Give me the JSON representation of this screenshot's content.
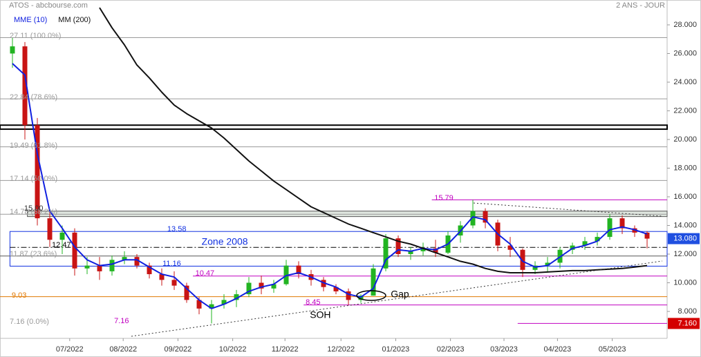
{
  "chart_data": {
    "type": "candlestick",
    "title": "ATOS - abcbourse.com",
    "subtitle": "2 ANS - JOUR",
    "up_color": "#22b422",
    "down_color": "#c81414",
    "open": [
      26,
      26.5,
      21,
      14.5,
      13,
      13.5,
      11,
      11.2,
      10.8,
      11.6,
      11.8,
      11.2,
      10.6,
      10.2,
      9.8,
      8.8,
      8.2,
      8.5,
      8.8,
      9.2,
      10,
      9.6,
      9.9,
      11.2,
      10.6,
      10.2,
      9.7,
      9.4,
      8.8,
      9.1,
      11,
      13.1,
      12,
      12.2,
      12.4,
      12.1,
      13.3,
      14,
      15,
      14.2,
      12.6,
      12.3,
      10.9,
      11.2,
      11.4,
      12.3,
      12.6,
      12.9,
      13.2,
      14.5,
      13.8,
      13.5
    ],
    "high": [
      27.1,
      26.8,
      21.5,
      15,
      14,
      13.8,
      11.8,
      11.8,
      11.9,
      12.2,
      12,
      11.4,
      11,
      10.8,
      10,
      9,
      8.8,
      9.2,
      9.5,
      10.4,
      10.5,
      10.2,
      11.6,
      11.5,
      10.9,
      10.4,
      9.9,
      9.6,
      9.2,
      11.3,
      13.4,
      13.3,
      12.5,
      12.8,
      13,
      13.6,
      14.3,
      15.79,
      15.2,
      14.4,
      13.2,
      12.4,
      11.5,
      11.8,
      12.5,
      12.8,
      13.2,
      13.5,
      14.8,
      14.7,
      14,
      13.6
    ],
    "low": [
      25,
      20,
      14,
      12.5,
      12,
      10.5,
      10.6,
      10.2,
      10.5,
      11.3,
      11,
      10.3,
      9.8,
      9.5,
      8.6,
      7.8,
      7.16,
      8.2,
      8.3,
      9,
      9.2,
      9.3,
      9.8,
      10.3,
      9.8,
      9.4,
      9.2,
      8.45,
      8.6,
      9.1,
      10.8,
      11.8,
      11.6,
      11.9,
      11.8,
      12,
      12.8,
      13.8,
      13.8,
      12.2,
      11.8,
      10.4,
      10.6,
      10.7,
      11,
      12,
      12.3,
      12.6,
      13,
      13.4,
      13.2,
      12.4
    ],
    "close": [
      26.5,
      21,
      14.5,
      13,
      13.5,
      11,
      11.2,
      10.8,
      11.6,
      11.8,
      11.2,
      10.6,
      10.2,
      9.8,
      8.8,
      8.2,
      8.5,
      8.8,
      9.2,
      10,
      9.6,
      9.9,
      11.2,
      10.6,
      10.2,
      9.7,
      9.4,
      8.8,
      9.1,
      11,
      13.1,
      12,
      12.2,
      12.4,
      12.1,
      13.3,
      14,
      15,
      14.2,
      12.6,
      12.3,
      10.9,
      11.2,
      11.4,
      12.3,
      12.6,
      12.9,
      13.2,
      14.5,
      13.8,
      13.5,
      13.08
    ],
    "series": [
      {
        "name": "MME (10)",
        "color": "#1020e0",
        "values": [
          25.3,
          24.5,
          19,
          15,
          13.8,
          12.5,
          11.6,
          11.2,
          11.3,
          11.6,
          11.6,
          11.1,
          10.6,
          10.4,
          9.6,
          8.8,
          8.2,
          8.5,
          8.9,
          9.4,
          9.7,
          9.9,
          10.5,
          10.7,
          10.4,
          10,
          9.7,
          9.2,
          9,
          9.6,
          11.6,
          12.3,
          12.2,
          12.4,
          12.3,
          12.7,
          13.6,
          14.6,
          14.4,
          13.4,
          12.7,
          11.5,
          11.1,
          11.2,
          11.8,
          12.4,
          12.6,
          12.9,
          13.7,
          13.9,
          13.7,
          13.4
        ]
      },
      {
        "name": "MM (200)",
        "color": "#111111",
        "values": [
          null,
          null,
          null,
          null,
          null,
          null,
          null,
          29.2,
          27.8,
          26.6,
          25.2,
          24.3,
          23.3,
          22.4,
          21.8,
          21.3,
          20.8,
          20.1,
          19.3,
          18.5,
          17.8,
          17.1,
          16.5,
          15.9,
          15.3,
          14.9,
          14.5,
          14.1,
          13.8,
          13.5,
          13.2,
          12.9,
          12.7,
          12.4,
          12.1,
          11.8,
          11.5,
          11.3,
          11,
          10.8,
          10.7,
          10.7,
          10.7,
          10.75,
          10.8,
          10.85,
          10.85,
          10.9,
          10.95,
          11,
          11.1,
          11.2
        ]
      }
    ],
    "xlim": [
      -1,
      52.61
    ],
    "xticks": [
      {
        "value": 4.6,
        "label": "07/2022"
      },
      {
        "value": 8.9,
        "label": "08/2022"
      },
      {
        "value": 13.3,
        "label": "09/2022"
      },
      {
        "value": 17.7,
        "label": "10/2022"
      },
      {
        "value": 21.9,
        "label": "11/2022"
      },
      {
        "value": 26.4,
        "label": "12/2022"
      },
      {
        "value": 30.8,
        "label": "01/2023"
      },
      {
        "value": 35.2,
        "label": "02/2023"
      },
      {
        "value": 39.5,
        "label": "03/2023"
      },
      {
        "value": 43.8,
        "label": "04/2023"
      },
      {
        "value": 48.2,
        "label": "05/2023"
      }
    ],
    "ylim": [
      6.12,
      29.735
    ],
    "yticks": [
      {
        "value": 8,
        "label": "8.000"
      },
      {
        "value": 10,
        "label": "10.000"
      },
      {
        "value": 12,
        "label": "12.000"
      },
      {
        "value": 14,
        "label": "14.000"
      },
      {
        "value": 16,
        "label": "16.000"
      },
      {
        "value": 18,
        "label": "18.000"
      },
      {
        "value": 20,
        "label": "20.000"
      },
      {
        "value": 22,
        "label": "22.000"
      },
      {
        "value": 24,
        "label": "24.000"
      },
      {
        "value": 26,
        "label": "26.000"
      },
      {
        "value": 28,
        "label": "28.000"
      }
    ],
    "zones": [
      {
        "low": 20.72,
        "high": 21.0,
        "from": -1,
        "stroke": "#000000",
        "fill": "none"
      },
      {
        "low": 14.62,
        "high": 15.0,
        "from": 1.2,
        "stroke": "#555555",
        "fill": "#dfe6df"
      },
      {
        "low": 11.16,
        "high": 13.58,
        "from": -0.2,
        "stroke": "#1030e0",
        "fill": "none"
      }
    ],
    "hlines": [
      {
        "value": 27.11,
        "from": -1,
        "color": "#9a9a9a"
      },
      {
        "value": 22.84,
        "from": -1,
        "color": "#9a9a9a"
      },
      {
        "value": 19.49,
        "from": -1,
        "color": "#9a9a9a"
      },
      {
        "value": 17.14,
        "from": -1,
        "color": "#9a9a9a"
      },
      {
        "value": 14.78,
        "from": -1,
        "color": "#9a9a9a"
      },
      {
        "value": 11.87,
        "from": -1,
        "color": "#555555"
      },
      {
        "value": 12.47,
        "from": -0.2,
        "color": "#000000",
        "dash": "8 3 2 3"
      },
      {
        "value": 10.47,
        "from": 14.5,
        "color": "#c000c0"
      },
      {
        "value": 9.03,
        "from": -1,
        "color": "#e07800"
      },
      {
        "value": 8.45,
        "from": 23.4,
        "color": "#c000c0"
      },
      {
        "value": 7.16,
        "from": 40.6,
        "color": "#c000c0"
      },
      {
        "value": 15.79,
        "from": 33.7,
        "color": "#c000c0"
      }
    ],
    "annotations": [
      {
        "text": "27.11 (100.0%)",
        "x": -0.22,
        "y": 27.23,
        "color": "#999999"
      },
      {
        "text": "22.84 (78.6%)",
        "x": -0.22,
        "y": 22.94,
        "color": "#999999"
      },
      {
        "text": "19.49 (61.8%)",
        "x": -0.22,
        "y": 19.57,
        "color": "#999999"
      },
      {
        "text": "17.14 (50.0%)",
        "x": -0.22,
        "y": 17.25,
        "color": "#999999"
      },
      {
        "text": "14.78 (38.2%)",
        "x": -0.22,
        "y": 14.94,
        "color": "#999999"
      },
      {
        "text": "11.87 (23.6%)",
        "x": -0.22,
        "y": 12.0,
        "color": "#999999"
      },
      {
        "text": "7.16 (0.0%)",
        "x": -0.22,
        "y": 7.28,
        "color": "#999999"
      },
      {
        "text": "15.00",
        "x": 0.94,
        "y": 15.18,
        "color": "#333333"
      },
      {
        "text": "12.47",
        "x": 3.17,
        "y": 12.63,
        "color": "#000000"
      },
      {
        "text": "13.58",
        "x": 12.44,
        "y": 13.73,
        "color": "#1030e0"
      },
      {
        "text": "Zone 2008",
        "x": 15.2,
        "y": 12.82,
        "color": "#1030e0"
      },
      {
        "text": "11.16",
        "x": 12.06,
        "y": 11.33,
        "color": "#1030e0"
      },
      {
        "text": "10.47",
        "x": 14.7,
        "y": 10.65,
        "color": "#c000c0"
      },
      {
        "text": "9.03",
        "x": -0.06,
        "y": 9.11,
        "color": "#e07800"
      },
      {
        "text": "8.45",
        "x": 23.56,
        "y": 8.63,
        "color": "#c000c0"
      },
      {
        "text": "7.16",
        "x": 8.17,
        "y": 7.33,
        "color": "#c000c0"
      },
      {
        "text": "15.79",
        "x": 33.9,
        "y": 15.9,
        "color": "#c000c0"
      },
      {
        "text": "Gap",
        "x": 30.4,
        "y": 9.16,
        "color": "#000000"
      },
      {
        "text": "SOH",
        "x": 23.9,
        "y": 7.71,
        "color": "#000000"
      }
    ],
    "price_tags": [
      {
        "value": 13.08,
        "label": "13.080",
        "color": "#1f4fe0"
      },
      {
        "value": 7.16,
        "label": "7.160",
        "color": "#d40000"
      }
    ]
  }
}
